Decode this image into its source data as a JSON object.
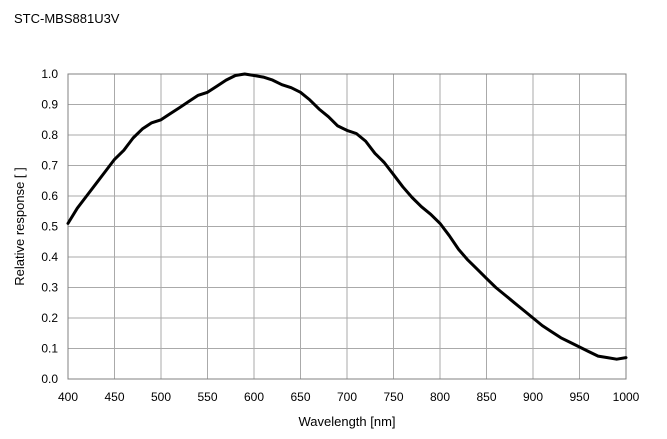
{
  "chart_data": {
    "type": "line",
    "title": "STC-MBS881U3V",
    "xlabel": "Wavelength [nm]",
    "ylabel": "Relative response [ ]",
    "xlim": [
      400,
      1000
    ],
    "ylim": [
      0,
      1.0
    ],
    "x_ticks": [
      "400",
      "450",
      "500",
      "550",
      "600",
      "650",
      "700",
      "750",
      "800",
      "850",
      "900",
      "950",
      "1000"
    ],
    "y_ticks": [
      "0.0",
      "0.1",
      "0.2",
      "0.3",
      "0.4",
      "0.5",
      "0.6",
      "0.7",
      "0.8",
      "0.9",
      "1.0"
    ],
    "grid": true,
    "line_color": "#000000",
    "grid_color": "#aaaaaa",
    "series": [
      {
        "x": [
          400,
          410,
          420,
          430,
          440,
          450,
          460,
          470,
          480,
          490,
          500,
          510,
          520,
          530,
          540,
          550,
          560,
          570,
          580,
          590,
          600,
          610,
          620,
          630,
          640,
          650,
          660,
          670,
          680,
          690,
          700,
          710,
          720,
          730,
          740,
          750,
          760,
          770,
          780,
          790,
          800,
          810,
          820,
          830,
          840,
          850,
          860,
          870,
          880,
          890,
          900,
          910,
          920,
          930,
          940,
          950,
          960,
          970,
          980,
          990,
          1000
        ],
        "y": [
          0.51,
          0.56,
          0.6,
          0.64,
          0.68,
          0.72,
          0.75,
          0.79,
          0.82,
          0.84,
          0.85,
          0.87,
          0.89,
          0.91,
          0.93,
          0.94,
          0.96,
          0.98,
          0.995,
          1.0,
          0.995,
          0.99,
          0.98,
          0.965,
          0.955,
          0.94,
          0.915,
          0.885,
          0.86,
          0.83,
          0.815,
          0.805,
          0.78,
          0.74,
          0.71,
          0.67,
          0.63,
          0.595,
          0.565,
          0.54,
          0.51,
          0.47,
          0.425,
          0.39,
          0.36,
          0.33,
          0.3,
          0.275,
          0.25,
          0.225,
          0.2,
          0.175,
          0.155,
          0.135,
          0.12,
          0.105,
          0.09,
          0.075,
          0.07,
          0.065,
          0.07
        ]
      }
    ]
  }
}
